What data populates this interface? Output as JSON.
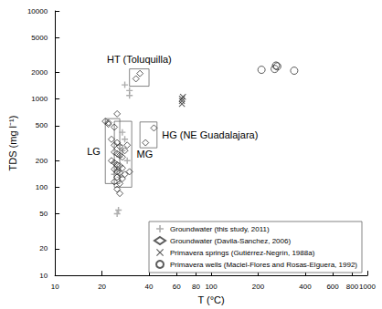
{
  "chart_data": {
    "type": "scatter",
    "x_label": "T (°C)",
    "y_label": "TDS (mg l⁻¹)",
    "log": true,
    "grid": false,
    "legend": "lower right",
    "xlim": [
      10,
      1000
    ],
    "xticks": [
      10,
      20,
      40,
      60,
      80,
      100,
      200,
      400,
      600,
      800,
      1000
    ],
    "ylim": [
      10,
      10000
    ],
    "yticks": [
      10,
      20,
      50,
      100,
      200,
      500,
      1000,
      2000,
      5000,
      10000
    ],
    "series": [
      {
        "name": "Groundwater (this study, 2011)",
        "color": "#999999",
        "marker": "plus",
        "values": [
          [
            25,
            50
          ],
          [
            25.5,
            55
          ],
          [
            24,
            140
          ],
          [
            25,
            160
          ],
          [
            26,
            220
          ],
          [
            27,
            260
          ],
          [
            26,
            300
          ],
          [
            28,
            350
          ],
          [
            27,
            420
          ],
          [
            30,
            1100
          ],
          [
            30,
            1250
          ],
          [
            28,
            1450
          ],
          [
            26,
            130
          ],
          [
            29,
            200
          ],
          [
            24,
            190
          ]
        ]
      },
      {
        "name": "Groundwater (Davila-Sanchez, 2006)",
        "color": "#333333",
        "marker": "diamond",
        "values": [
          [
            21,
            560
          ],
          [
            22,
            540
          ],
          [
            22,
            520
          ],
          [
            24,
            480
          ],
          [
            25,
            680
          ],
          [
            23,
            350
          ],
          [
            24,
            300
          ],
          [
            25,
            320
          ],
          [
            26,
            290
          ],
          [
            24,
            250
          ],
          [
            25,
            240
          ],
          [
            26,
            230
          ],
          [
            27,
            220
          ],
          [
            23,
            200
          ],
          [
            24,
            190
          ],
          [
            25,
            180
          ],
          [
            26,
            175
          ],
          [
            27,
            165
          ],
          [
            24,
            160
          ],
          [
            25,
            150
          ],
          [
            26,
            145
          ],
          [
            28,
            140
          ],
          [
            25,
            130
          ],
          [
            27,
            125
          ],
          [
            24,
            115
          ],
          [
            26,
            110
          ],
          [
            25,
            95
          ],
          [
            26,
            85
          ],
          [
            28,
            260
          ],
          [
            29,
            300
          ],
          [
            30,
            150
          ],
          [
            33,
            1700
          ],
          [
            35,
            1950
          ],
          [
            38,
            320
          ],
          [
            43,
            470
          ]
        ]
      },
      {
        "name": "Primavera springs (Gutiérrez-Negrín, 1988a)",
        "color": "#333333",
        "marker": "x",
        "values": [
          [
            65,
            880
          ],
          [
            65,
            950
          ],
          [
            65,
            1010
          ],
          [
            66,
            1060
          ]
        ]
      },
      {
        "name": "Primavera wells (Maciel-Flores and Rosas-Elguera, 1992)",
        "color": "#333333",
        "marker": "circle",
        "values": [
          [
            210,
            2150
          ],
          [
            255,
            2200
          ],
          [
            260,
            2400
          ],
          [
            265,
            2350
          ],
          [
            340,
            2100
          ]
        ]
      }
    ],
    "groups": [
      {
        "label": "LG",
        "x": [
          21,
          26
        ],
        "y": [
          110,
          600
        ]
      },
      {
        "label": "MG",
        "x": [
          24,
          31
        ],
        "y": [
          100,
          560
        ]
      },
      {
        "label": "HT (Toluquilla)",
        "x": [
          30,
          40
        ],
        "y": [
          1400,
          2200
        ]
      },
      {
        "label": "HG (NE Guadalajara)",
        "x": [
          35,
          45
        ],
        "y": [
          280,
          550
        ]
      }
    ]
  }
}
